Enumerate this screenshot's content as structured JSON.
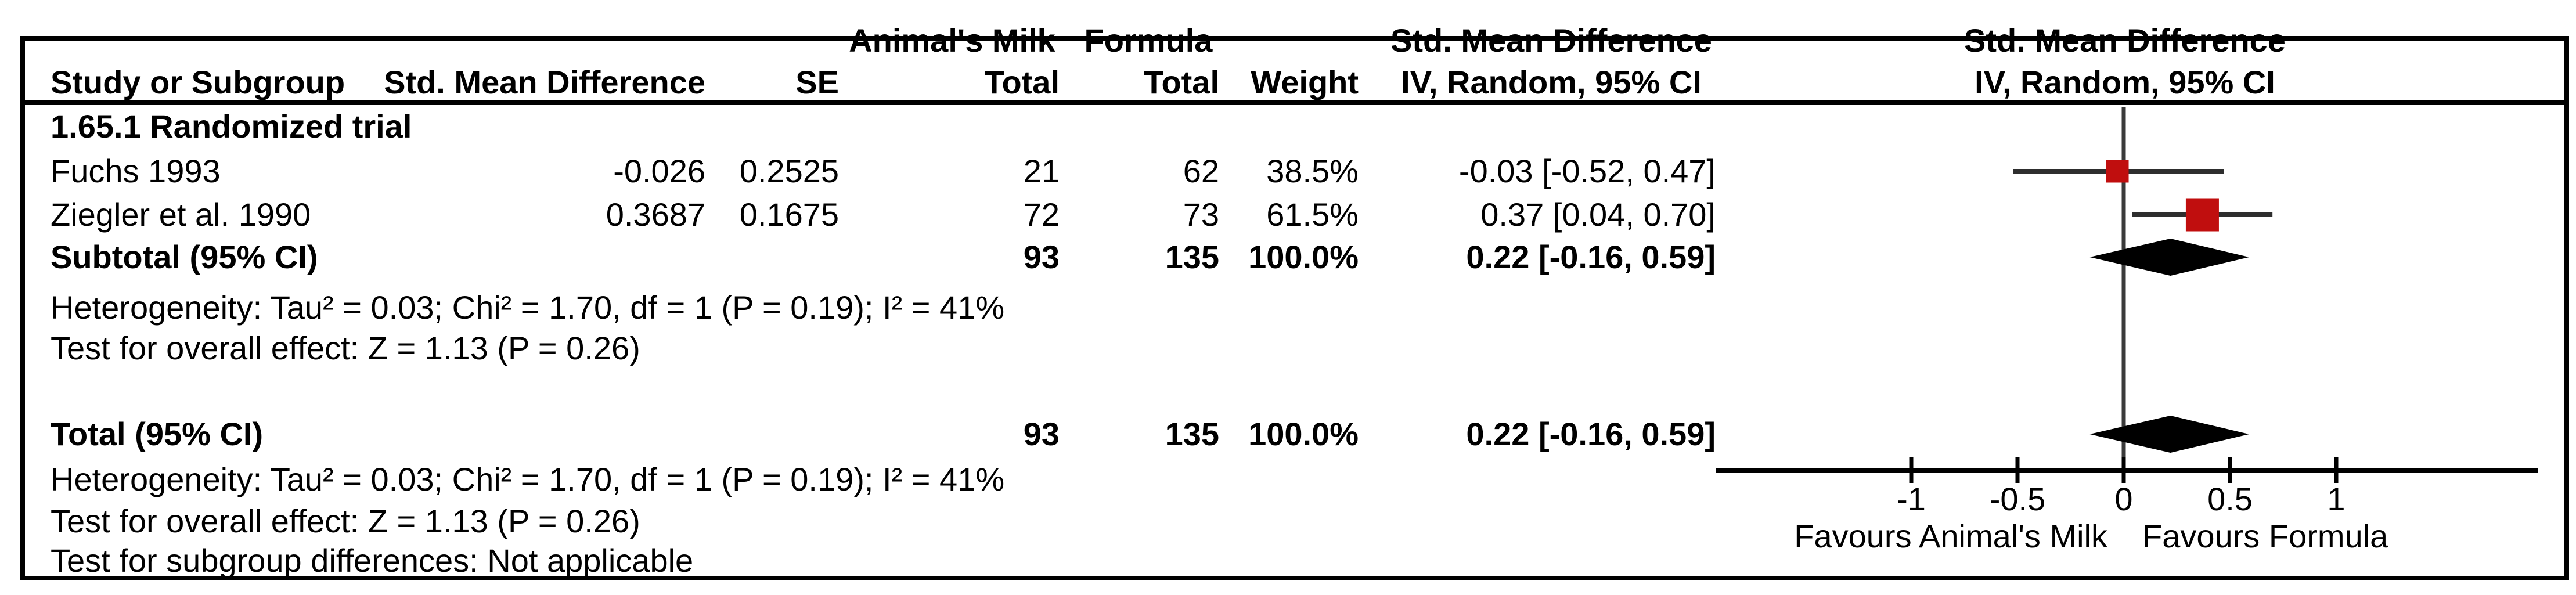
{
  "figure": {
    "kind": "forest-plot",
    "background": "#ffffff",
    "border_color": "#000000",
    "text_color": "#000000",
    "marker_color": "#c00e0e",
    "ci_line_color": "#2e2e2e",
    "diamond_color": "#000000",
    "header": {
      "row1": {
        "group1": "Animal's Milk",
        "group2": "Formula",
        "smd_text_col": "Std. Mean Difference",
        "smd_plot_col": "Std. Mean Difference"
      },
      "row2": {
        "study": "Study or Subgroup",
        "smd": "Std. Mean Difference",
        "se": "SE",
        "total1": "Total",
        "total2": "Total",
        "weight": "Weight",
        "iv_text_col": "IV, Random, 95% CI",
        "iv_plot_col": "IV, Random, 95% CI"
      }
    },
    "subgroup": {
      "label": "1.65.1 Randomized trial",
      "studies": [
        {
          "name": "Fuchs 1993",
          "smd": "-0.026",
          "se": "0.2525",
          "total1": "21",
          "total2": "62",
          "weight": "38.5%",
          "ci_text": "-0.03 [-0.52, 0.47]"
        },
        {
          "name": "Ziegler et al. 1990",
          "smd": "0.3687",
          "se": "0.1675",
          "total1": "72",
          "total2": "73",
          "weight": "61.5%",
          "ci_text": "0.37 [0.04, 0.70]"
        }
      ],
      "subtotal": {
        "label": "Subtotal (95% CI)",
        "total1": "93",
        "total2": "135",
        "weight": "100.0%",
        "ci_text": "0.22 [-0.16, 0.59]"
      },
      "heterogeneity": "Heterogeneity: Tau² = 0.03; Chi² = 1.70, df = 1 (P = 0.19); I² = 41%",
      "overall_effect": "Test for overall effect: Z = 1.13 (P = 0.26)"
    },
    "total": {
      "label": "Total (95% CI)",
      "total1": "93",
      "total2": "135",
      "weight": "100.0%",
      "ci_text": "0.22 [-0.16, 0.59]",
      "heterogeneity": "Heterogeneity: Tau² = 0.03; Chi² = 1.70, df = 1 (P = 0.19); I² = 41%",
      "overall_effect": "Test for overall effect: Z = 1.13 (P = 0.26)",
      "subgroup_differences": "Test for subgroup differences: Not applicable"
    }
  },
  "chart_data": {
    "type": "forest",
    "title": "Std. Mean Difference, IV, Random, 95% CI",
    "x_axis": {
      "ticks": [
        -1,
        -0.5,
        0,
        0.5,
        1
      ],
      "tick_labels": [
        "-1",
        "-0.5",
        "0",
        "0.5",
        "1"
      ],
      "line_range": [
        -1.92,
        1.95
      ],
      "zero_line": 0
    },
    "favours_left": "Favours Animal's Milk",
    "favours_right": "Favours Formula",
    "studies": [
      {
        "name": "Fuchs 1993",
        "estimate": -0.03,
        "ci_low": -0.52,
        "ci_high": 0.47,
        "weight_pct": 38.5
      },
      {
        "name": "Ziegler et al. 1990",
        "estimate": 0.37,
        "ci_low": 0.04,
        "ci_high": 0.7,
        "weight_pct": 61.5
      }
    ],
    "subtotal": {
      "label": "Subtotal (95% CI)",
      "estimate": 0.22,
      "ci_low": -0.16,
      "ci_high": 0.59
    },
    "total": {
      "label": "Total (95% CI)",
      "estimate": 0.22,
      "ci_low": -0.16,
      "ci_high": 0.59
    }
  }
}
